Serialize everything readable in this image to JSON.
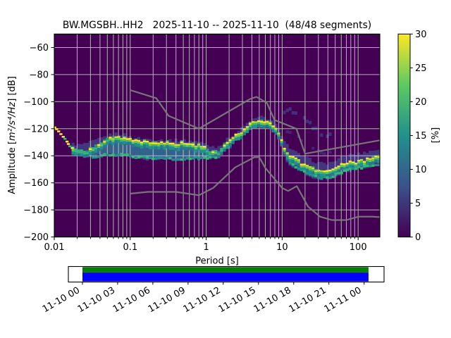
{
  "chart_data": {
    "type": "heatmap",
    "title": "BW.MGSBH..HH2   2025-11-10 -- 2025-11-10  (48/48 segments)",
    "xlabel": "Period [s]",
    "ylabel": {
      "prefix": "Amplitude [",
      "math": "m²/s⁴/Hz",
      "suffix": "] [dB]"
    },
    "x_scale": "log",
    "xlim": [
      0.01,
      192
    ],
    "ylim": [
      -200,
      -50
    ],
    "grid": true,
    "x_ticks": [
      [
        0.01,
        "0.01"
      ],
      [
        0.1,
        "0.1"
      ],
      [
        1,
        "1"
      ],
      [
        10,
        "10"
      ],
      [
        100,
        "100"
      ]
    ],
    "y_ticks": [
      {
        "v": -60,
        "label": "−60"
      },
      {
        "v": -80,
        "label": "−80"
      },
      {
        "v": -100,
        "label": "−100"
      },
      {
        "v": -120,
        "label": "−120"
      },
      {
        "v": -140,
        "label": "−140"
      },
      {
        "v": -160,
        "label": "−160"
      },
      {
        "v": -180,
        "label": "−180"
      },
      {
        "v": -200,
        "label": "−200"
      }
    ],
    "colorbar": {
      "label": "[%]",
      "min": 0,
      "max": 30,
      "ticks": [
        0,
        5,
        10,
        15,
        20,
        25,
        30
      ],
      "stops": [
        "#440154",
        "#3b528b",
        "#21918c",
        "#5ec962",
        "#fde725"
      ]
    },
    "colors": {
      "background": "#440154",
      "grid": "#cccccc",
      "axes": "#000000",
      "noise_model": "#7b7b7b",
      "spread_outer": "#453882",
      "spread_inner": "#31688e",
      "halo_green": "#5ec962",
      "halo_green2": "#35b779",
      "halo_teal": "#21918c",
      "halo_teal2": "#2a788e",
      "ridge_yellow": "#fde725",
      "ridge_yellow2": "#d8e219",
      "ridge_green": "#addc30",
      "cloud": "#46327e",
      "cloud2": "#452c7c"
    },
    "ppsd": {
      "ridge": [
        [
          0.0101,
          -119
        ],
        [
          0.0115,
          -121.5
        ],
        [
          0.013,
          -124.5
        ],
        [
          0.0145,
          -128
        ],
        [
          0.016,
          -131
        ],
        [
          0.0175,
          -134.5
        ],
        [
          0.021,
          -136
        ],
        [
          0.026,
          -136
        ],
        [
          0.032,
          -134.5
        ],
        [
          0.04,
          -131.5
        ],
        [
          0.05,
          -128.5
        ],
        [
          0.06,
          -126.5
        ],
        [
          0.07,
          -126
        ],
        [
          0.085,
          -127
        ],
        [
          0.1,
          -128.5
        ],
        [
          0.13,
          -130
        ],
        [
          0.18,
          -130.7
        ],
        [
          0.28,
          -131
        ],
        [
          0.45,
          -131
        ],
        [
          0.65,
          -131.5
        ],
        [
          0.85,
          -133
        ],
        [
          1.05,
          -135.5
        ],
        [
          1.25,
          -137.5
        ],
        [
          1.45,
          -137.5
        ],
        [
          1.7,
          -133
        ],
        [
          2.1,
          -128
        ],
        [
          2.75,
          -123.5
        ],
        [
          3.4,
          -119
        ],
        [
          4.2,
          -115.8
        ],
        [
          5.3,
          -113.8
        ],
        [
          6.2,
          -114.5
        ],
        [
          7.5,
          -117
        ],
        [
          8.5,
          -121
        ],
        [
          9.3,
          -125
        ],
        [
          10.2,
          -131
        ],
        [
          11.4,
          -137.5
        ],
        [
          13,
          -141
        ],
        [
          15.2,
          -143
        ],
        [
          18,
          -145.5
        ],
        [
          23,
          -148.2
        ],
        [
          29,
          -150.8
        ],
        [
          35,
          -151.6
        ],
        [
          44,
          -150.8
        ],
        [
          54,
          -148.2
        ],
        [
          67,
          -146.1
        ],
        [
          82,
          -145
        ],
        [
          103,
          -144.6
        ],
        [
          130,
          -143
        ],
        [
          157,
          -142
        ],
        [
          192,
          -140.7
        ]
      ],
      "band_upper": [
        [
          0.0172,
          -131
        ],
        [
          0.022,
          -132
        ],
        [
          0.03,
          -130
        ],
        [
          0.04,
          -127.5
        ],
        [
          0.05,
          -125
        ],
        [
          0.065,
          -123.5
        ],
        [
          0.08,
          -124
        ],
        [
          0.1,
          -126
        ],
        [
          0.15,
          -127.5
        ],
        [
          0.25,
          -128
        ],
        [
          0.45,
          -128.5
        ],
        [
          0.7,
          -129
        ],
        [
          0.9,
          -130.5
        ],
        [
          1.1,
          -132.5
        ],
        [
          1.4,
          -133.5
        ],
        [
          1.7,
          -130
        ],
        [
          2.1,
          -125.5
        ],
        [
          2.75,
          -121
        ],
        [
          3.4,
          -116.5
        ],
        [
          4.2,
          -113
        ],
        [
          5.3,
          -111.3
        ],
        [
          6.2,
          -112
        ],
        [
          7.5,
          -114.5
        ],
        [
          8.5,
          -118
        ],
        [
          9.3,
          -121.5
        ],
        [
          10.2,
          -126
        ],
        [
          11.4,
          -131
        ],
        [
          13,
          -135
        ],
        [
          15.2,
          -137.5
        ],
        [
          18,
          -140
        ],
        [
          23,
          -142.5
        ],
        [
          29,
          -145
        ],
        [
          35,
          -145.8
        ],
        [
          44,
          -145
        ],
        [
          54,
          -142.5
        ],
        [
          67,
          -140.5
        ],
        [
          82,
          -139
        ],
        [
          103,
          -138.5
        ],
        [
          130,
          -137
        ],
        [
          157,
          -136
        ],
        [
          192,
          -135
        ]
      ],
      "band_lower": [
        [
          0.0172,
          -138.5
        ],
        [
          0.022,
          -140
        ],
        [
          0.03,
          -141.5
        ],
        [
          0.04,
          -140.5
        ],
        [
          0.05,
          -140
        ],
        [
          0.065,
          -139.5
        ],
        [
          0.08,
          -139.8
        ],
        [
          0.1,
          -141
        ],
        [
          0.15,
          -142.5
        ],
        [
          0.25,
          -143
        ],
        [
          0.45,
          -142.8
        ],
        [
          0.7,
          -142.5
        ],
        [
          0.9,
          -142
        ],
        [
          1.1,
          -141.5
        ],
        [
          1.4,
          -141
        ],
        [
          1.7,
          -137.5
        ],
        [
          2.1,
          -133
        ],
        [
          2.75,
          -127
        ],
        [
          3.4,
          -121.5
        ],
        [
          4.2,
          -117.5
        ],
        [
          5.3,
          -115.5
        ],
        [
          6.2,
          -116.5
        ],
        [
          7.5,
          -120
        ],
        [
          8.5,
          -124.5
        ],
        [
          9.3,
          -129
        ],
        [
          10.2,
          -136
        ],
        [
          11.4,
          -143
        ],
        [
          13,
          -147
        ],
        [
          15.2,
          -149.5
        ],
        [
          18,
          -152
        ],
        [
          23,
          -155
        ],
        [
          29,
          -157
        ],
        [
          35,
          -158
        ],
        [
          44,
          -157
        ],
        [
          54,
          -154.5
        ],
        [
          67,
          -152
        ],
        [
          82,
          -150.5
        ],
        [
          103,
          -150
        ],
        [
          130,
          -148
        ],
        [
          157,
          -147
        ],
        [
          192,
          -146
        ]
      ],
      "second_mode": [
        [
          [
            0.03,
            -140.8
          ],
          [
            0.05,
            -139.3
          ],
          [
            0.08,
            -139.2
          ],
          [
            0.12,
            -140.8
          ],
          [
            0.2,
            -142
          ],
          [
            0.35,
            -142.3
          ],
          [
            0.55,
            -142
          ],
          [
            0.8,
            -141.7
          ],
          [
            1.1,
            -141.2
          ],
          [
            1.4,
            -140.5
          ]
        ],
        [
          [
            11.5,
            -142
          ],
          [
            13,
            -145.5
          ],
          [
            15.2,
            -148.5
          ],
          [
            18,
            -151
          ],
          [
            23,
            -153.8
          ],
          [
            29,
            -155.8
          ],
          [
            35,
            -156.5
          ],
          [
            44,
            -155.8
          ],
          [
            54,
            -153.2
          ],
          [
            67,
            -150.8
          ],
          [
            82,
            -149.3
          ],
          [
            103,
            -148.8
          ],
          [
            192,
            -146.5
          ]
        ]
      ],
      "cloud": [
        [
          8,
          -118
        ],
        [
          9.5,
          -112.5
        ],
        [
          11,
          -108.5
        ],
        [
          13,
          -106.5
        ],
        [
          15,
          -107.5
        ],
        [
          18,
          -111
        ],
        [
          22,
          -115.5
        ],
        [
          27,
          -120
        ],
        [
          34,
          -123.5
        ],
        [
          42,
          -125.5
        ]
      ],
      "left_scatter": [
        [
          0.0101,
          -119,
          0
        ],
        [
          0.0107,
          -120.3,
          0
        ],
        [
          0.0114,
          -122,
          0
        ],
        [
          0.0122,
          -124,
          0
        ],
        [
          0.0131,
          -126,
          0
        ],
        [
          0.0138,
          -127.5,
          1
        ],
        [
          0.0147,
          -129.5,
          0
        ],
        [
          0.0153,
          -131.3,
          0
        ],
        [
          0.016,
          -133,
          1
        ],
        [
          0.0172,
          -134.3,
          0
        ]
      ]
    },
    "noise_models": {
      "nhnm": [
        [
          0.1,
          -91.5
        ],
        [
          0.22,
          -97.4
        ],
        [
          0.32,
          -110.5
        ],
        [
          0.8,
          -120
        ],
        [
          3.8,
          -98
        ],
        [
          4.6,
          -96.5
        ],
        [
          6.3,
          -101
        ],
        [
          7.9,
          -113.5
        ],
        [
          15.4,
          -120
        ],
        [
          20,
          -138.5
        ],
        [
          192,
          -128.6
        ]
      ],
      "nlnm": [
        [
          0.1,
          -168
        ],
        [
          0.17,
          -166.7
        ],
        [
          0.4,
          -166.7
        ],
        [
          0.8,
          -169.2
        ],
        [
          1.24,
          -163.7
        ],
        [
          2.4,
          -148.6
        ],
        [
          4.3,
          -141.1
        ],
        [
          5,
          -141.1
        ],
        [
          6,
          -149
        ],
        [
          10,
          -163.8
        ],
        [
          12,
          -166
        ],
        [
          15.6,
          -162.4
        ],
        [
          21.9,
          -177.5
        ],
        [
          31.6,
          -185
        ],
        [
          45,
          -187.5
        ],
        [
          70,
          -187.5
        ],
        [
          101,
          -185
        ],
        [
          154,
          -185
        ],
        [
          192,
          -185.3
        ]
      ]
    },
    "availability": {
      "tick_labels": [
        "11-10 00",
        "11-10 03",
        "11-10 06",
        "11-10 09",
        "11-10 12",
        "11-10 15",
        "11-10 18",
        "11-10 21",
        "11-11 00"
      ],
      "tick_hours": [
        0,
        3,
        6,
        9,
        12,
        15,
        18,
        21,
        24
      ],
      "axis_hours": [
        -1.2,
        25.7
      ],
      "data_hours": [
        0,
        24.37
      ],
      "green": "#008000",
      "blue": "#0000ff"
    }
  }
}
